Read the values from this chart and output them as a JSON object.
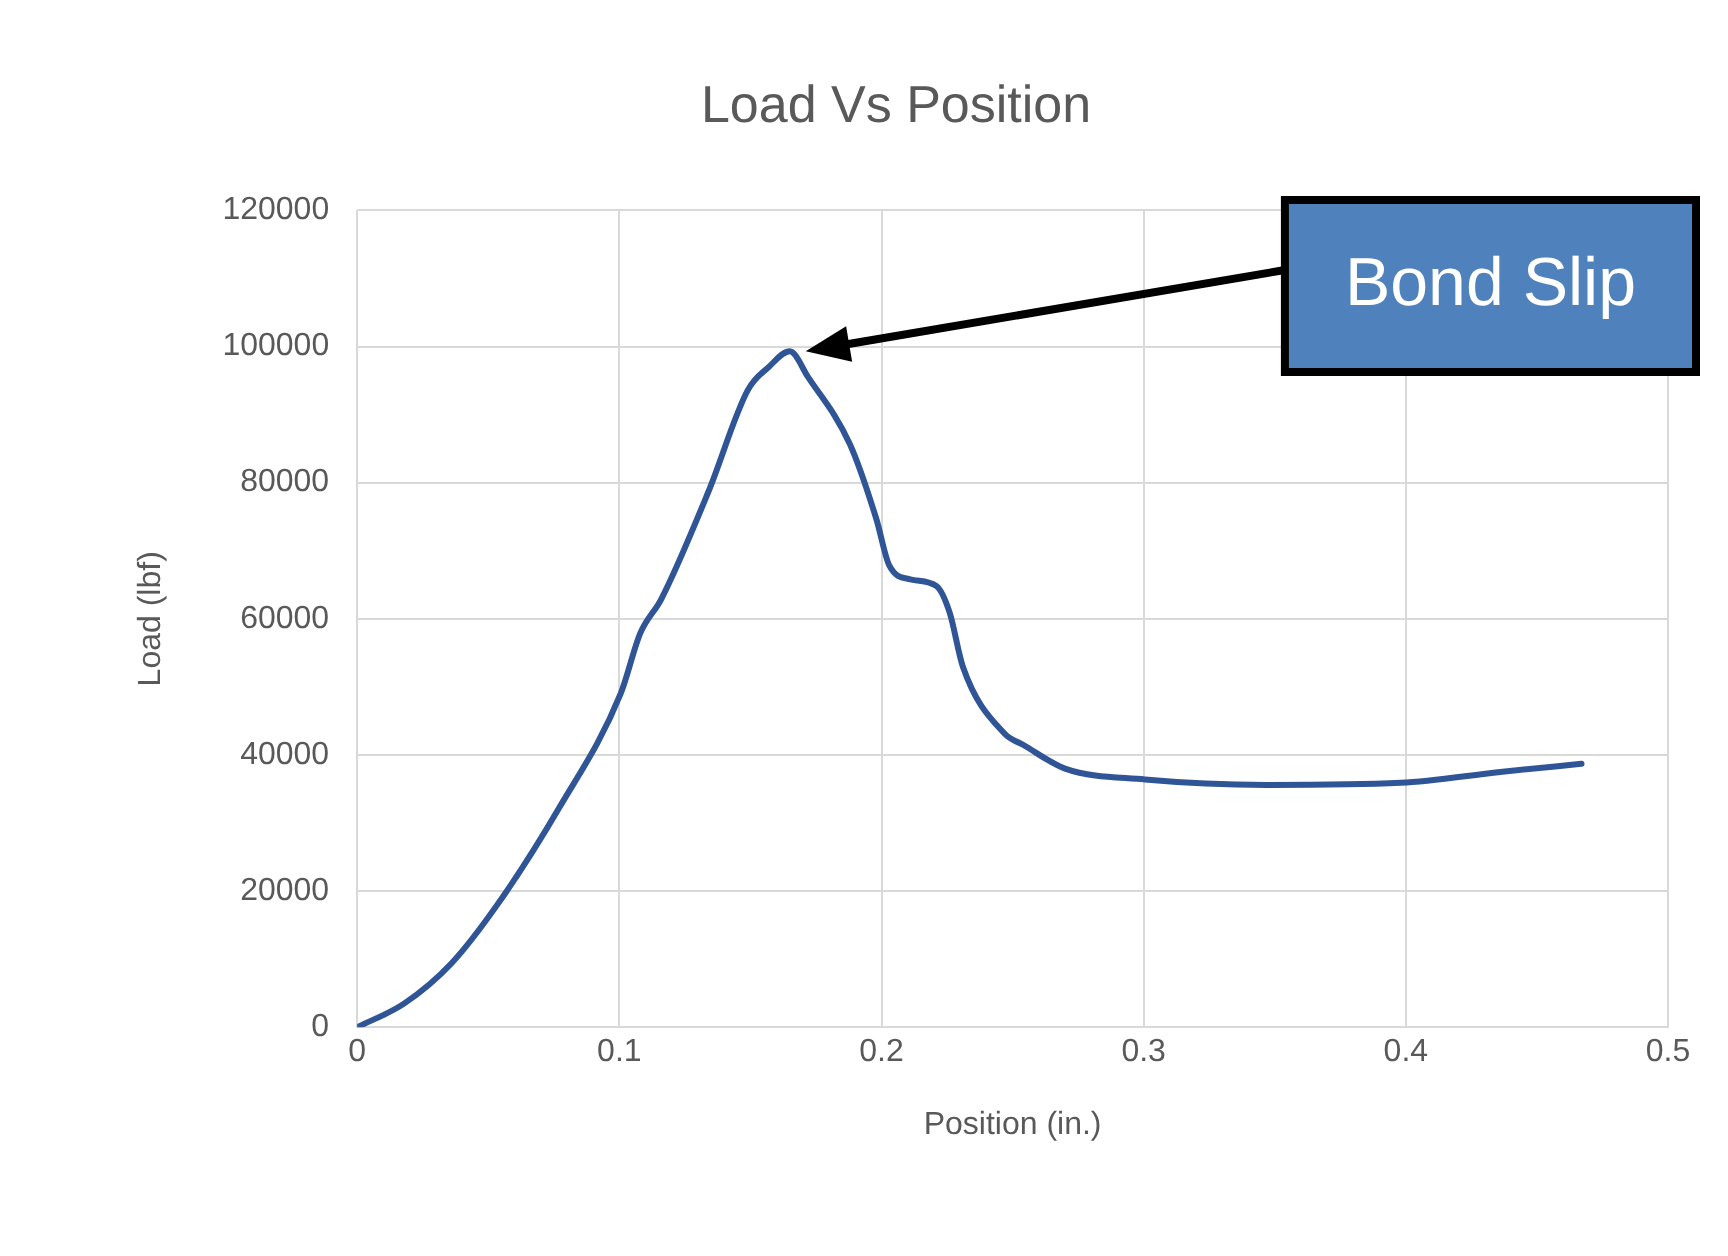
{
  "chart_data": {
    "type": "line",
    "title": "Load Vs Position",
    "xlabel": "Position (in.)",
    "ylabel": "Load (lbf)",
    "x": [
      0,
      0.018,
      0.036,
      0.054,
      0.077,
      0.1005,
      0.108,
      0.116,
      0.134,
      0.149,
      0.157,
      0.165,
      0.172,
      0.188,
      0.198,
      0.203,
      0.211,
      0.221,
      0.226,
      0.231,
      0.247,
      0.254,
      0.27,
      0.3005,
      0.347,
      0.398,
      0.436,
      0.467
    ],
    "series": [
      {
        "color": "#2f5597",
        "values": [
          0,
          3500,
          9400,
          18300,
          32200,
          49000,
          57900,
          62900,
          78700,
          93600,
          97000,
          99300,
          95500,
          85600,
          74700,
          67800,
          65800,
          64800,
          60900,
          53000,
          43100,
          41500,
          38000,
          36400,
          35600,
          35900,
          37500,
          38700
        ]
      }
    ],
    "xlim": [
      0,
      0.5
    ],
    "xticks": [
      0,
      0.1,
      0.2,
      0.3,
      0.4,
      0.5
    ],
    "ylim": [
      0,
      120000
    ],
    "yticks": [
      0,
      20000,
      40000,
      60000,
      80000,
      100000,
      120000
    ],
    "grid": true,
    "legend": false,
    "marker": "none",
    "line_style": "solid",
    "annotations": [
      "Bond Slip"
    ]
  }
}
